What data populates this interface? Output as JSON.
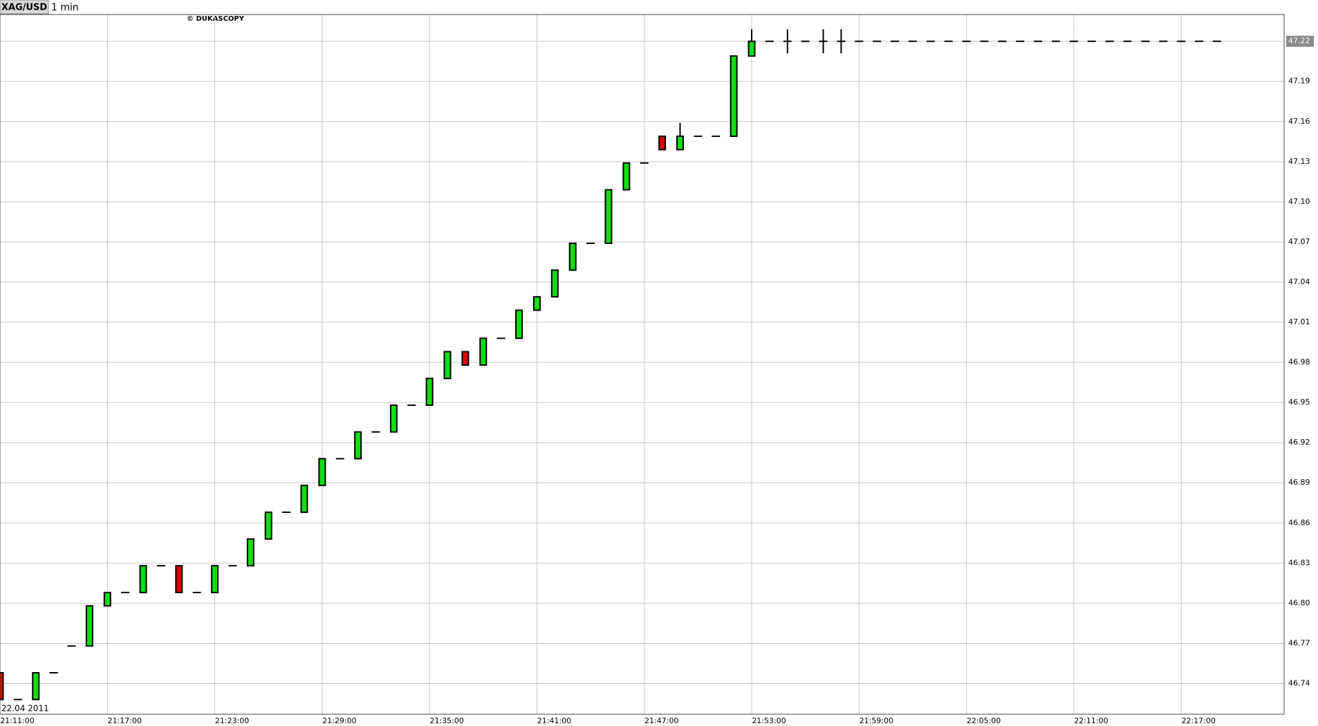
{
  "chart_data": {
    "type": "candlestick",
    "symbol": "XAG/USD",
    "interval": "1 min",
    "watermark": "© DUKASCOPY",
    "date_label": "22.04 2011",
    "up_color": "#11dd11",
    "down_color": "#dd0000",
    "grid": true,
    "x": [
      "21:11:00",
      "21:12:00",
      "21:13:00",
      "21:14:00",
      "21:15:00",
      "21:16:00",
      "21:17:00",
      "21:18:00",
      "21:19:00",
      "21:20:00",
      "21:21:00",
      "21:22:00",
      "21:23:00",
      "21:24:00",
      "21:25:00",
      "21:26:00",
      "21:27:00",
      "21:28:00",
      "21:29:00",
      "21:30:00",
      "21:31:00",
      "21:32:00",
      "21:33:00",
      "21:34:00",
      "21:35:00",
      "21:36:00",
      "21:37:00",
      "21:38:00",
      "21:39:00",
      "21:40:00",
      "21:41:00",
      "21:42:00",
      "21:43:00",
      "21:44:00",
      "21:45:00",
      "21:46:00",
      "21:47:00",
      "21:48:00",
      "21:49:00",
      "21:50:00",
      "21:51:00",
      "21:52:00",
      "21:53:00",
      "21:54:00",
      "21:55:00",
      "21:56:00",
      "21:57:00",
      "21:58:00",
      "21:59:00",
      "22:00:00",
      "22:01:00",
      "22:02:00",
      "22:03:00",
      "22:04:00",
      "22:05:00",
      "22:06:00",
      "22:07:00",
      "22:08:00",
      "22:09:00",
      "22:10:00",
      "22:11:00",
      "22:12:00",
      "22:13:00",
      "22:14:00",
      "22:15:00",
      "22:16:00",
      "22:17:00",
      "22:18:00",
      "22:19:00"
    ],
    "open": [
      46.748,
      46.728,
      46.728,
      46.748,
      46.768,
      46.768,
      46.798,
      46.808,
      46.808,
      46.828,
      46.828,
      46.808,
      46.808,
      46.828,
      46.828,
      46.848,
      46.868,
      46.868,
      46.888,
      46.908,
      46.908,
      46.928,
      46.928,
      46.948,
      46.948,
      46.968,
      46.988,
      46.978,
      46.998,
      46.998,
      47.019,
      47.029,
      47.049,
      47.069,
      47.069,
      47.109,
      47.129,
      47.149,
      47.139,
      47.149,
      47.149,
      47.149,
      47.209,
      47.22,
      47.22,
      47.22,
      47.22,
      47.22,
      47.22,
      47.22,
      47.22,
      47.22,
      47.22,
      47.22,
      47.22,
      47.22,
      47.22,
      47.22,
      47.22,
      47.22,
      47.22,
      47.22,
      47.22,
      47.22,
      47.22,
      47.22,
      47.22,
      47.22,
      47.22
    ],
    "high": [
      46.748,
      46.728,
      46.748,
      46.748,
      46.768,
      46.798,
      46.808,
      46.808,
      46.828,
      46.828,
      46.828,
      46.808,
      46.828,
      46.828,
      46.848,
      46.868,
      46.868,
      46.888,
      46.908,
      46.908,
      46.928,
      46.928,
      46.948,
      46.948,
      46.968,
      46.988,
      46.988,
      46.998,
      46.998,
      47.019,
      47.029,
      47.049,
      47.069,
      47.069,
      47.109,
      47.129,
      47.129,
      47.149,
      47.159,
      47.149,
      47.149,
      47.209,
      47.229,
      47.22,
      47.229,
      47.22,
      47.229,
      47.229,
      47.22,
      47.22,
      47.22,
      47.22,
      47.22,
      47.22,
      47.22,
      47.22,
      47.22,
      47.22,
      47.22,
      47.22,
      47.22,
      47.22,
      47.22,
      47.22,
      47.22,
      47.22,
      47.22,
      47.22,
      47.22
    ],
    "low": [
      46.728,
      46.728,
      46.728,
      46.748,
      46.768,
      46.768,
      46.798,
      46.808,
      46.808,
      46.828,
      46.808,
      46.808,
      46.808,
      46.828,
      46.828,
      46.848,
      46.868,
      46.868,
      46.888,
      46.908,
      46.908,
      46.928,
      46.928,
      46.948,
      46.948,
      46.968,
      46.978,
      46.978,
      46.998,
      46.998,
      47.019,
      47.029,
      47.049,
      47.069,
      47.069,
      47.109,
      47.129,
      47.139,
      47.139,
      47.149,
      47.149,
      47.149,
      47.209,
      47.22,
      47.211,
      47.22,
      47.211,
      47.211,
      47.22,
      47.22,
      47.22,
      47.22,
      47.22,
      47.22,
      47.22,
      47.22,
      47.22,
      47.22,
      47.22,
      47.22,
      47.22,
      47.22,
      47.22,
      47.22,
      47.22,
      47.22,
      47.22,
      47.22,
      47.22
    ],
    "close": [
      46.728,
      46.728,
      46.748,
      46.748,
      46.768,
      46.798,
      46.808,
      46.808,
      46.828,
      46.828,
      46.808,
      46.808,
      46.828,
      46.828,
      46.848,
      46.868,
      46.868,
      46.888,
      46.908,
      46.908,
      46.928,
      46.928,
      46.948,
      46.948,
      46.968,
      46.988,
      46.978,
      46.998,
      46.998,
      47.019,
      47.029,
      47.049,
      47.069,
      47.069,
      47.109,
      47.129,
      47.129,
      47.139,
      47.149,
      47.149,
      47.149,
      47.209,
      47.22,
      47.22,
      47.22,
      47.22,
      47.22,
      47.22,
      47.22,
      47.22,
      47.22,
      47.22,
      47.22,
      47.22,
      47.22,
      47.22,
      47.22,
      47.22,
      47.22,
      47.22,
      47.22,
      47.22,
      47.22,
      47.22,
      47.22,
      47.22,
      47.22,
      47.22,
      47.22
    ],
    "xlim": [
      "21:11:00",
      "22:22:45"
    ],
    "xticks": [
      "21:11:00",
      "21:17:00",
      "21:23:00",
      "21:29:00",
      "21:35:00",
      "21:41:00",
      "21:47:00",
      "21:53:00",
      "21:59:00",
      "22:05:00",
      "22:11:00",
      "22:17:00"
    ],
    "ylim": [
      46.717,
      47.24
    ],
    "yticks": [
      46.74,
      46.77,
      {
        "value": 46.8,
        "label": "46.80"
      },
      46.83,
      46.86,
      46.89,
      46.92,
      46.95,
      46.98,
      47.01,
      47.04,
      47.07,
      {
        "value": 47.1,
        "label": "47.10"
      },
      47.13,
      47.16,
      47.19
    ],
    "last_price": 47.22
  }
}
